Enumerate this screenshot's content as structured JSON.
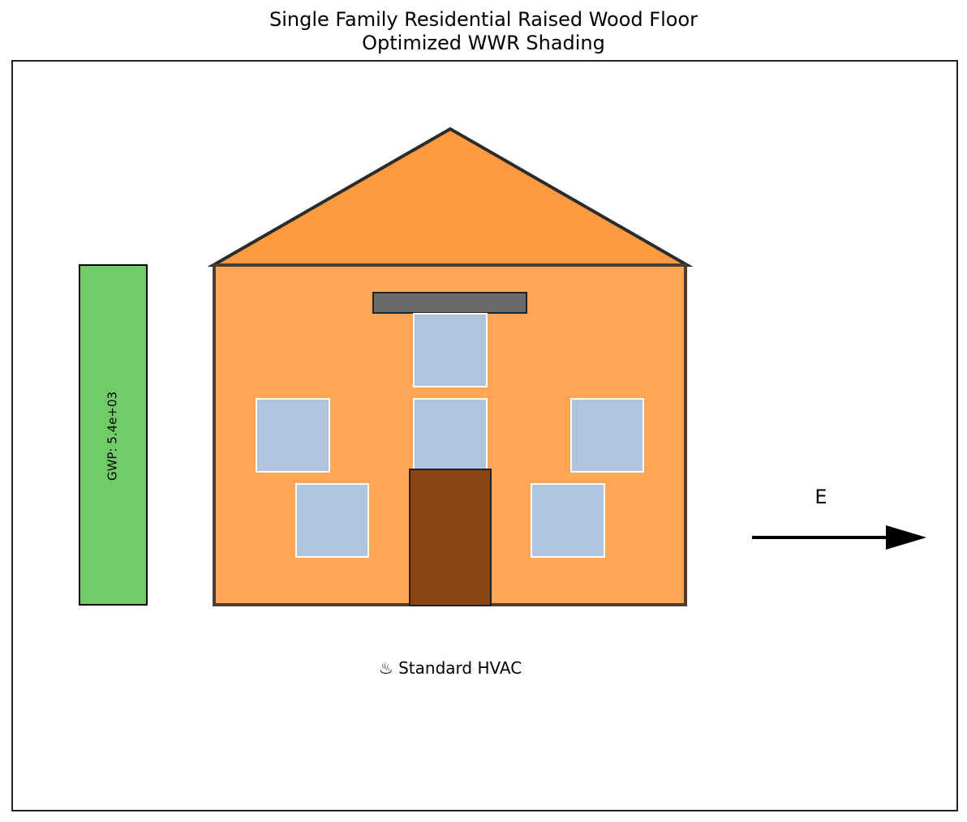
{
  "title": {
    "line1": "Single Family Residential Raised Wood Floor",
    "line2": "Optimized WWR Shading"
  },
  "gwp": {
    "label": "GWP: 5.4e+03",
    "color": "#70cc66"
  },
  "orientation": {
    "label": "E"
  },
  "hvac": {
    "label": "♨ Standard HVAC"
  },
  "house": {
    "roof_color": "#ff9a40",
    "wall_color": "#ffa555",
    "window_color": "#b0c4de",
    "door_color": "#8b4513",
    "shade_color": "#6b6b6b"
  }
}
